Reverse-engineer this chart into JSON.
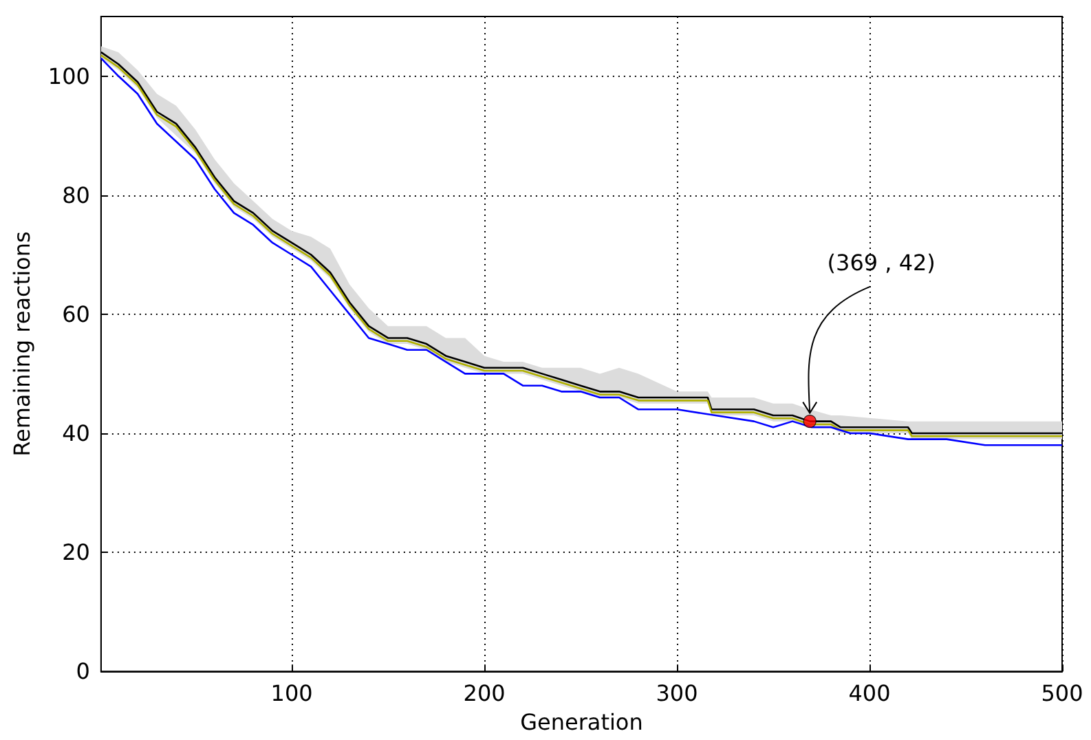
{
  "chart_data": {
    "type": "line",
    "xlabel": "Generation",
    "ylabel": "Remaining reactions",
    "xlim": [
      1,
      500
    ],
    "xticks": [
      100,
      200,
      300,
      400,
      500
    ],
    "ylim": [
      0,
      110
    ],
    "yticks": [
      0,
      20,
      40,
      60,
      80,
      100
    ],
    "grid": true,
    "marker": "none",
    "line_style": "solid",
    "annotations": [
      {
        "text": "(369 , 42)",
        "x": 369,
        "y": 42
      }
    ],
    "series": [
      {
        "color": "#000000",
        "x": [
          1,
          10,
          20,
          30,
          40,
          50,
          60,
          70,
          80,
          90,
          100,
          110,
          120,
          130,
          140,
          150,
          160,
          170,
          180,
          190,
          200,
          210,
          220,
          230,
          240,
          250,
          260,
          270,
          280,
          300,
          316,
          318,
          340,
          350,
          360,
          369,
          380,
          385,
          420,
          422,
          440,
          460,
          480,
          500
        ],
        "values": [
          104,
          102,
          99,
          94,
          92,
          88,
          83,
          79,
          77,
          74,
          72,
          70,
          67,
          62,
          58,
          56,
          56,
          55,
          53,
          52,
          51,
          51,
          51,
          50,
          49,
          48,
          47,
          47,
          46,
          46,
          46,
          44,
          44,
          43,
          43,
          42,
          42,
          41,
          41,
          40,
          40,
          40,
          40,
          40
        ],
        "upper": [
          105,
          104,
          101,
          97,
          95,
          91,
          86,
          82,
          79,
          76,
          74,
          73,
          71,
          65,
          61,
          58,
          58,
          58,
          56,
          56,
          53,
          52,
          52,
          51,
          51,
          51,
          50,
          51,
          50,
          47,
          47,
          46,
          46,
          45,
          45,
          44,
          43,
          43,
          42,
          42,
          42,
          42,
          42,
          42
        ],
        "lower": [
          103,
          101,
          98,
          93,
          90,
          87,
          82,
          78,
          76,
          73,
          71,
          69,
          66,
          61,
          57,
          55,
          55,
          54,
          52,
          51,
          50,
          50,
          50,
          49,
          48,
          47,
          46,
          46,
          45,
          45,
          45,
          43,
          43,
          42,
          42,
          41,
          41,
          40,
          40,
          39,
          39,
          39,
          39,
          39
        ]
      },
      {
        "color": "#b0b000",
        "x": [
          1,
          10,
          20,
          30,
          40,
          50,
          60,
          70,
          80,
          90,
          100,
          110,
          120,
          130,
          140,
          150,
          160,
          170,
          180,
          190,
          200,
          210,
          220,
          230,
          240,
          250,
          260,
          270,
          280,
          300,
          316,
          318,
          340,
          350,
          360,
          369,
          380,
          385,
          420,
          422,
          440,
          460,
          480,
          500
        ],
        "values": [
          103.5,
          101.5,
          98.5,
          93.5,
          91.5,
          87.5,
          82.5,
          78.5,
          76.5,
          73.5,
          71.5,
          69.5,
          66.5,
          61.5,
          57.5,
          55.5,
          55.5,
          54.5,
          52.5,
          51.5,
          50.5,
          50.5,
          50.5,
          49.5,
          48.5,
          47.5,
          46.5,
          46.5,
          45.5,
          45.5,
          45.5,
          43.5,
          43.5,
          42.5,
          42.5,
          41.5,
          41.5,
          40.5,
          40.5,
          39.5,
          39.5,
          39.5,
          39.5,
          39.5
        ]
      },
      {
        "color": "#0000ff",
        "x": [
          1,
          10,
          20,
          30,
          40,
          50,
          60,
          70,
          80,
          90,
          100,
          110,
          120,
          130,
          140,
          150,
          160,
          170,
          180,
          190,
          200,
          210,
          220,
          230,
          240,
          250,
          260,
          270,
          280,
          300,
          320,
          340,
          350,
          360,
          370,
          380,
          390,
          400,
          420,
          440,
          460,
          480,
          500
        ],
        "values": [
          103,
          100,
          97,
          92,
          89,
          86,
          81,
          77,
          75,
          72,
          70,
          68,
          64,
          60,
          56,
          55,
          54,
          54,
          52,
          50,
          50,
          50,
          48,
          48,
          47,
          47,
          46,
          46,
          44,
          44,
          43,
          42,
          41,
          42,
          41,
          41,
          40,
          40,
          39,
          39,
          38,
          38,
          38
        ]
      },
      {
        "type": "scatter",
        "color": "#ff0000",
        "marker": "circle",
        "x": [
          369
        ],
        "values": [
          42
        ]
      }
    ]
  }
}
